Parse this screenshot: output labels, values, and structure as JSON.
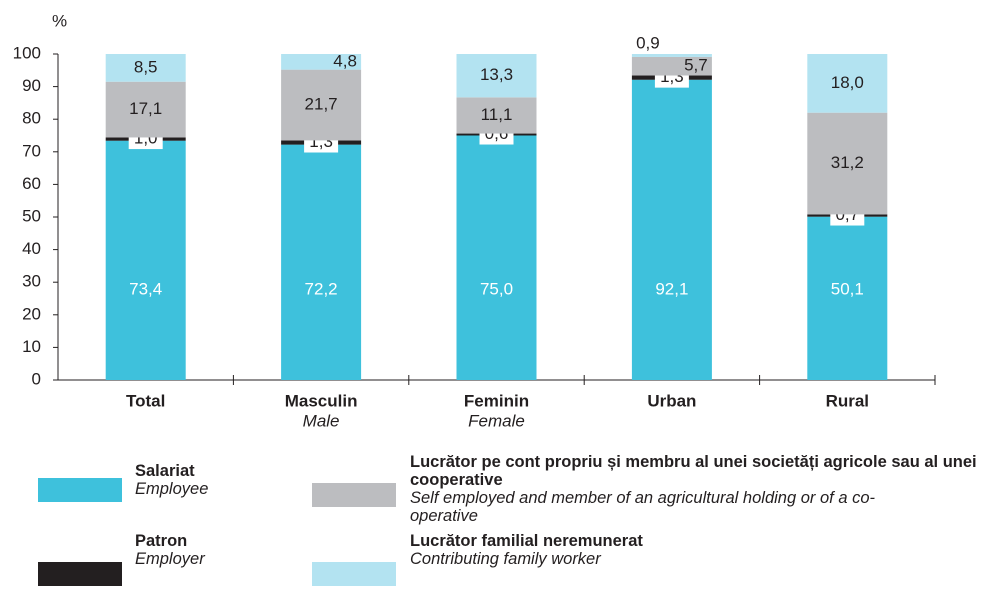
{
  "chart_data": {
    "type": "stacked_bar",
    "y_label": "%",
    "categories": [
      "Total",
      "Masculin",
      "Feminin",
      "Urban",
      "Rural"
    ],
    "category_subtitles": [
      null,
      "Male",
      "Female",
      null,
      null
    ],
    "ylim": [
      0,
      100
    ],
    "yticks": [
      0,
      10,
      20,
      30,
      40,
      50,
      60,
      70,
      80,
      90,
      100
    ],
    "series": [
      {
        "name": "Salariat",
        "name_en": "Employee",
        "color": "#3ec1dc",
        "values": [
          73.4,
          72.2,
          75.0,
          92.1,
          50.1
        ],
        "value_labels": [
          "73,4",
          "72,2",
          "75,0",
          "92,1",
          "50,1"
        ]
      },
      {
        "name": "Patron",
        "name_en": "Employer",
        "color": "#231f20",
        "values": [
          1.0,
          1.3,
          0.6,
          1.3,
          0.7
        ],
        "value_labels": [
          "1,0",
          "1,3",
          "0,6",
          "1,3",
          "0,7"
        ]
      },
      {
        "name": "Lucrător pe cont propriu și membru al unei societăți agricole sau al unei cooperative",
        "name_en": "Self employed and member of an agricultural holding or of a co-operative",
        "color": "#bcbdc0",
        "values": [
          17.1,
          21.7,
          11.1,
          5.7,
          31.2
        ],
        "value_labels": [
          "17,1",
          "21,7",
          "11,1",
          "5,7",
          "31,2"
        ]
      },
      {
        "name": "Lucrător familial neremunerat",
        "name_en": "Contributing family worker",
        "color": "#b3e3f1",
        "values": [
          8.5,
          4.8,
          13.3,
          0.9,
          18.0
        ],
        "value_labels": [
          "8,5",
          "4,8",
          "13,3",
          "0,9",
          "18,0"
        ]
      }
    ]
  }
}
